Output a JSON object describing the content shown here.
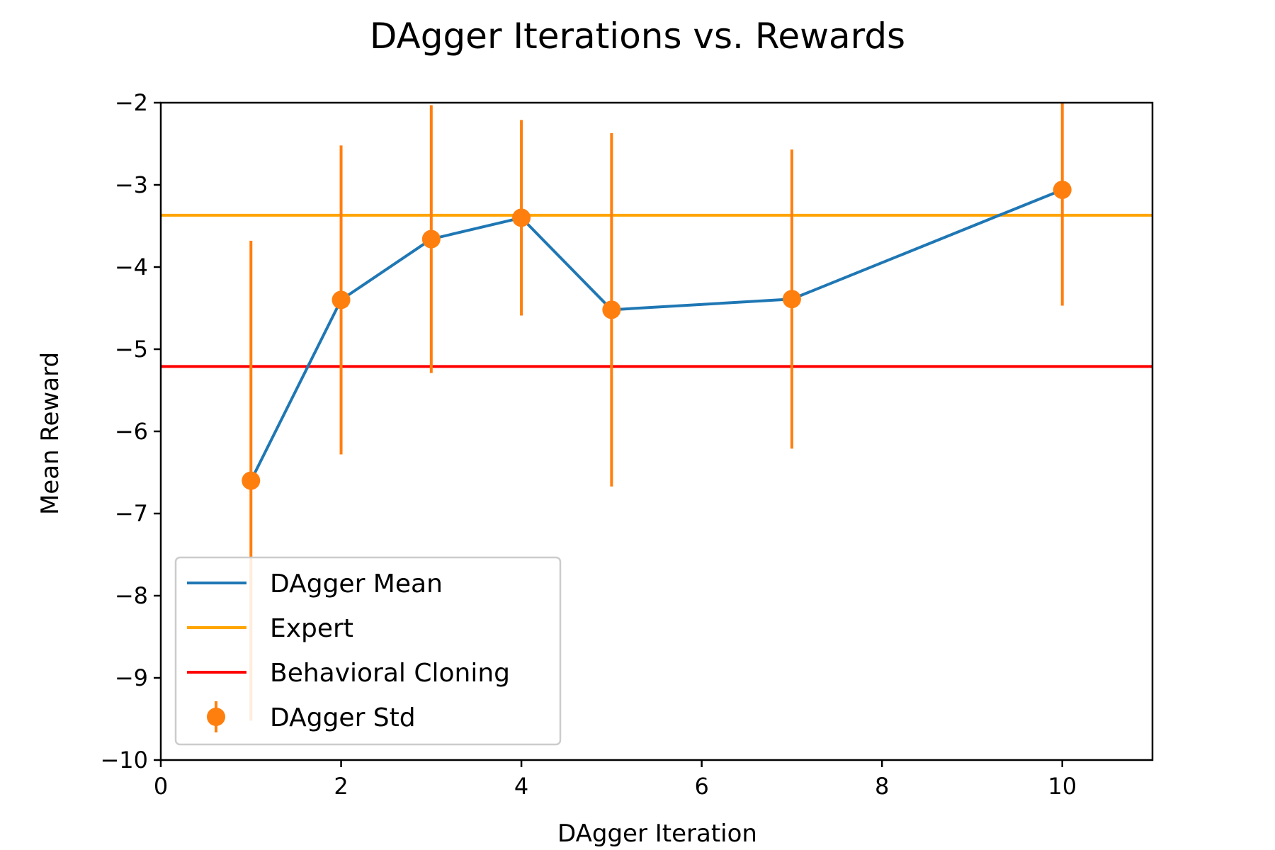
{
  "chart_data": {
    "type": "line",
    "title": "DAgger Iterations vs. Rewards",
    "xlabel": "DAgger Iteration",
    "ylabel": "Mean Reward",
    "xlim": [
      0,
      11
    ],
    "ylim": [
      -10,
      -2
    ],
    "xticks": [
      0,
      2,
      4,
      6,
      8,
      10
    ],
    "yticks": [
      -10,
      -9,
      -8,
      -7,
      -6,
      -5,
      -4,
      -3,
      -2
    ],
    "x": [
      1,
      2,
      3,
      4,
      5,
      7,
      10
    ],
    "series": [
      {
        "name": "DAgger Mean",
        "kind": "line",
        "color": "#1f77b4",
        "values": [
          -6.6,
          -4.4,
          -3.66,
          -3.4,
          -4.52,
          -4.39,
          -3.06
        ]
      },
      {
        "name": "Expert",
        "kind": "hline",
        "color": "#ffa500",
        "value": -3.37
      },
      {
        "name": "Behavioral Cloning",
        "kind": "hline",
        "color": "#ff0000",
        "value": -5.21
      },
      {
        "name": "DAgger Std",
        "kind": "errorbar",
        "color": "#ff7f0e",
        "values": [
          -6.6,
          -4.4,
          -3.66,
          -3.4,
          -4.52,
          -4.39,
          -3.06
        ],
        "std": [
          2.92,
          1.88,
          1.63,
          1.19,
          2.15,
          1.82,
          1.41
        ]
      }
    ],
    "legend": {
      "position": "lower-left",
      "entries": [
        "DAgger Mean",
        "Expert",
        "Behavioral Cloning",
        "DAgger Std"
      ]
    },
    "grid": false
  }
}
